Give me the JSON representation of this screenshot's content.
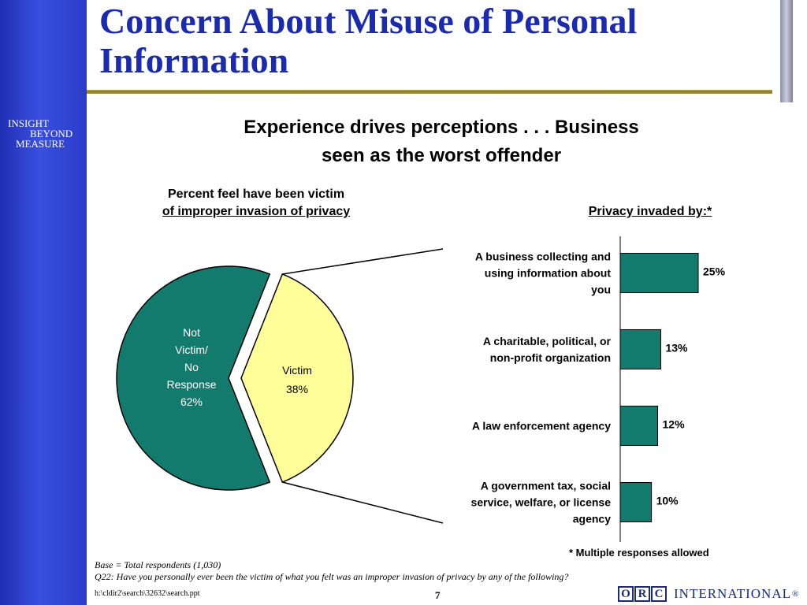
{
  "slide": {
    "title": "Concern About Misuse of Personal Information",
    "brand_lines": [
      "INSIGHT",
      "BEYOND",
      "MEASURE"
    ],
    "subtitle": "Experience drives perceptions . . . Business seen as the worst offender",
    "pie_caption_line1": "Percent feel have been victim",
    "pie_caption_line2": "of improper invasion of privacy",
    "bar_caption": "Privacy invaded by:*",
    "multiple_note": "* Multiple responses allowed",
    "base_note": "Base = Total respondents (1,030)",
    "question_note": "Q22: Have you personally ever been the victim of what you felt was an improper invasion of privacy by any of the following?",
    "file_path": "h:\\cldir2\\search\\32632\\search.ppt",
    "page_number": "7",
    "logo_letters": [
      "O",
      "R",
      "C"
    ],
    "logo_word": "INTERNATIONAL",
    "logo_mark": "®"
  },
  "colors": {
    "sidebar": "#2a3cc8",
    "title": "#1a2bb0",
    "teal": "#137a6e",
    "yellow": "#ffff99",
    "rule": "#a2903c"
  },
  "chart_data": [
    {
      "type": "pie",
      "slices": [
        {
          "label_lines": [
            "Not",
            "Victim/",
            "No",
            "Response"
          ],
          "value": 62,
          "value_label": "62%",
          "color": "#137a6e"
        },
        {
          "label_lines": [
            "Victim"
          ],
          "value": 38,
          "value_label": "38%",
          "color": "#ffff99",
          "exploded": true
        }
      ]
    },
    {
      "type": "bar",
      "orientation": "horizontal",
      "categories": [
        [
          "A business collecting and",
          "using information about",
          "you"
        ],
        [
          "A charitable, political, or",
          "non-profit organization"
        ],
        [
          "A law enforcement agency"
        ],
        [
          "A government tax, social",
          "service, welfare, or license",
          "agency"
        ]
      ],
      "values": [
        25,
        13,
        12,
        10
      ],
      "value_labels": [
        "25%",
        "13%",
        "12%",
        "10%"
      ],
      "color": "#137a6e",
      "xlim": [
        0,
        55
      ]
    }
  ]
}
